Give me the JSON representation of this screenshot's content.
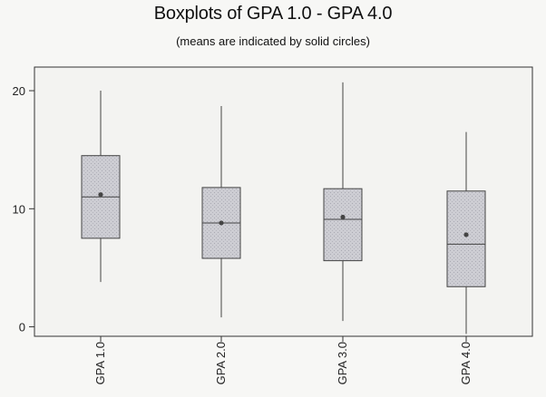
{
  "chart_data": {
    "type": "boxplot",
    "title": "Boxplots of GPA 1.0 - GPA 4.0",
    "subtitle": "(means are indicated by solid circles)",
    "xlabel": "",
    "ylabel": "",
    "ylim": [
      -0.8,
      22
    ],
    "yticks": [
      0,
      10,
      20
    ],
    "ytick_labels": [
      "0",
      "10",
      "20"
    ],
    "grid": false,
    "categories": [
      "GPA 1.0",
      "GPA 2.0",
      "GPA 3.0",
      "GPA 4.0"
    ],
    "boxes": [
      {
        "min": 3.8,
        "q1": 7.5,
        "median": 11.0,
        "q3": 14.5,
        "max": 20.0,
        "mean": 11.2
      },
      {
        "min": 0.8,
        "q1": 5.8,
        "median": 8.8,
        "q3": 11.8,
        "max": 18.7,
        "mean": 8.8
      },
      {
        "min": 0.5,
        "q1": 5.6,
        "median": 9.1,
        "q3": 11.7,
        "max": 20.7,
        "mean": 9.3
      },
      {
        "min": -0.6,
        "q1": 3.4,
        "median": 7.0,
        "q3": 11.5,
        "max": 16.5,
        "mean": 7.8
      }
    ],
    "colors": {
      "box_fill": "#c6c6cc",
      "stroke": "#444444",
      "mean": "#444444"
    }
  }
}
